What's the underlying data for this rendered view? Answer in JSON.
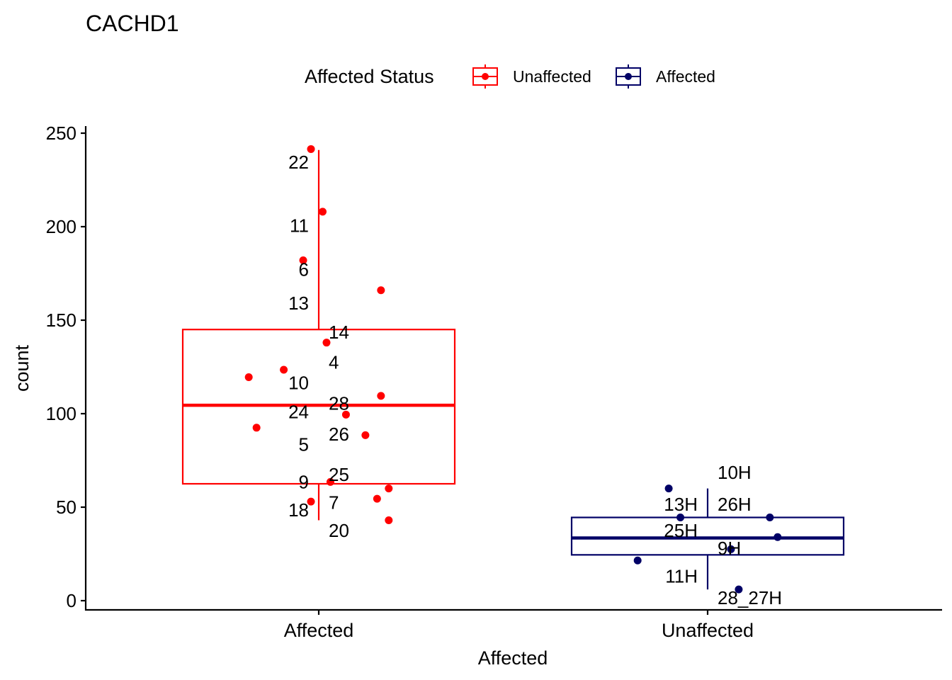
{
  "chart_data": {
    "type": "box",
    "title": "CACHD1",
    "xlabel": "Affected",
    "ylabel": "count",
    "ylim": [
      -5,
      256
    ],
    "yticks": [
      0,
      50,
      100,
      150,
      200,
      250
    ],
    "categories": [
      "Affected",
      "Unaffected"
    ],
    "legend": {
      "title": "Affected Status",
      "placement": "top",
      "entries": [
        {
          "label": "Unaffected",
          "color": "#FF0000"
        },
        {
          "label": "Affected",
          "color": "#000066"
        }
      ]
    },
    "grid": false,
    "boxes": [
      {
        "category": "Affected",
        "color": "#FF0000",
        "whisker_low": 43,
        "q1": 62.5,
        "median": 104.5,
        "q3": 145,
        "whisker_high": 241
      },
      {
        "category": "Unaffected",
        "color": "#000066",
        "whisker_low": 6,
        "q1": 24.5,
        "median": 33.5,
        "q3": 44.5,
        "whisker_high": 60
      }
    ],
    "points": [
      {
        "category": "Affected",
        "jitter": -0.02,
        "y": 241.5
      },
      {
        "category": "Affected",
        "jitter": 0.01,
        "y": 208
      },
      {
        "category": "Affected",
        "jitter": -0.04,
        "y": 182
      },
      {
        "category": "Affected",
        "jitter": 0.16,
        "y": 166
      },
      {
        "category": "Affected",
        "jitter": 0.02,
        "y": 138
      },
      {
        "category": "Affected",
        "jitter": -0.09,
        "y": 123.5
      },
      {
        "category": "Affected",
        "jitter": -0.18,
        "y": 119.5
      },
      {
        "category": "Affected",
        "jitter": 0.16,
        "y": 109.5
      },
      {
        "category": "Affected",
        "jitter": 0.07,
        "y": 99.5
      },
      {
        "category": "Affected",
        "jitter": -0.16,
        "y": 92.5
      },
      {
        "category": "Affected",
        "jitter": 0.12,
        "y": 88.5
      },
      {
        "category": "Affected",
        "jitter": 0.03,
        "y": 63.5
      },
      {
        "category": "Affected",
        "jitter": 0.18,
        "y": 60
      },
      {
        "category": "Affected",
        "jitter": 0.15,
        "y": 54.5
      },
      {
        "category": "Affected",
        "jitter": -0.02,
        "y": 53
      },
      {
        "category": "Affected",
        "jitter": 0.18,
        "y": 43
      },
      {
        "category": "Unaffected",
        "jitter": -0.1,
        "y": 60
      },
      {
        "category": "Unaffected",
        "jitter": -0.07,
        "y": 44.5
      },
      {
        "category": "Unaffected",
        "jitter": 0.16,
        "y": 44.5
      },
      {
        "category": "Unaffected",
        "jitter": 0.18,
        "y": 34
      },
      {
        "category": "Unaffected",
        "jitter": 0.06,
        "y": 27.5
      },
      {
        "category": "Unaffected",
        "jitter": -0.18,
        "y": 21.5
      },
      {
        "category": "Unaffected",
        "jitter": 0.08,
        "y": 6
      }
    ],
    "labels": [
      {
        "category": "Affected",
        "side": "left",
        "text": "22",
        "y": 234.5
      },
      {
        "category": "Affected",
        "side": "left",
        "text": "11",
        "y": 200.5
      },
      {
        "category": "Affected",
        "side": "left",
        "text": "6",
        "y": 177
      },
      {
        "category": "Affected",
        "side": "left",
        "text": "13",
        "y": 159
      },
      {
        "category": "Affected",
        "side": "right",
        "text": "14",
        "y": 143.5
      },
      {
        "category": "Affected",
        "side": "right",
        "text": "4",
        "y": 127.5
      },
      {
        "category": "Affected",
        "side": "left",
        "text": "10",
        "y": 116.5
      },
      {
        "category": "Affected",
        "side": "right",
        "text": "28",
        "y": 105.5
      },
      {
        "category": "Affected",
        "side": "left",
        "text": "24",
        "y": 101
      },
      {
        "category": "Affected",
        "side": "right",
        "text": "26",
        "y": 89
      },
      {
        "category": "Affected",
        "side": "left",
        "text": "5",
        "y": 83.5
      },
      {
        "category": "Affected",
        "side": "right",
        "text": "25",
        "y": 67.5
      },
      {
        "category": "Affected",
        "side": "left",
        "text": "9",
        "y": 63.5
      },
      {
        "category": "Affected",
        "side": "right",
        "text": "7",
        "y": 52.5
      },
      {
        "category": "Affected",
        "side": "left",
        "text": "18",
        "y": 48.5
      },
      {
        "category": "Affected",
        "side": "right",
        "text": "20",
        "y": 37.5
      },
      {
        "category": "Unaffected",
        "side": "right",
        "text": "10H",
        "y": 68.5
      },
      {
        "category": "Unaffected",
        "side": "left",
        "text": "13H",
        "y": 51.5
      },
      {
        "category": "Unaffected",
        "side": "right",
        "text": "26H",
        "y": 51.5
      },
      {
        "category": "Unaffected",
        "side": "left",
        "text": "25H",
        "y": 37.5
      },
      {
        "category": "Unaffected",
        "side": "right",
        "text": "9H",
        "y": 28
      },
      {
        "category": "Unaffected",
        "side": "left",
        "text": "11H",
        "y": 13
      },
      {
        "category": "Unaffected",
        "side": "right",
        "text": "28_27H",
        "y": 1.5
      }
    ]
  }
}
